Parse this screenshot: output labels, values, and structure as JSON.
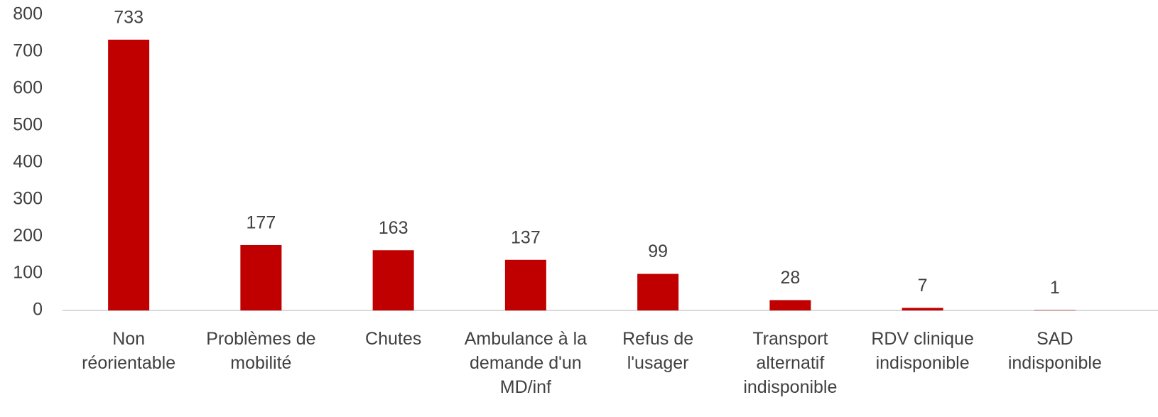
{
  "chart_data": {
    "type": "bar",
    "categories": [
      "Non réorientable",
      "Problèmes de mobilité",
      "Chutes",
      "Ambulance à la demande d'un MD/inf",
      "Refus de l'usager",
      "Transport alternatif indisponible",
      "RDV clinique indisponible",
      "SAD indisponible"
    ],
    "values": [
      733,
      177,
      163,
      137,
      99,
      28,
      7,
      1
    ],
    "color": "#c00000",
    "ylim": [
      0,
      800
    ],
    "yticks": [
      0,
      100,
      200,
      300,
      400,
      500,
      600,
      700,
      800
    ],
    "grid": false
  }
}
